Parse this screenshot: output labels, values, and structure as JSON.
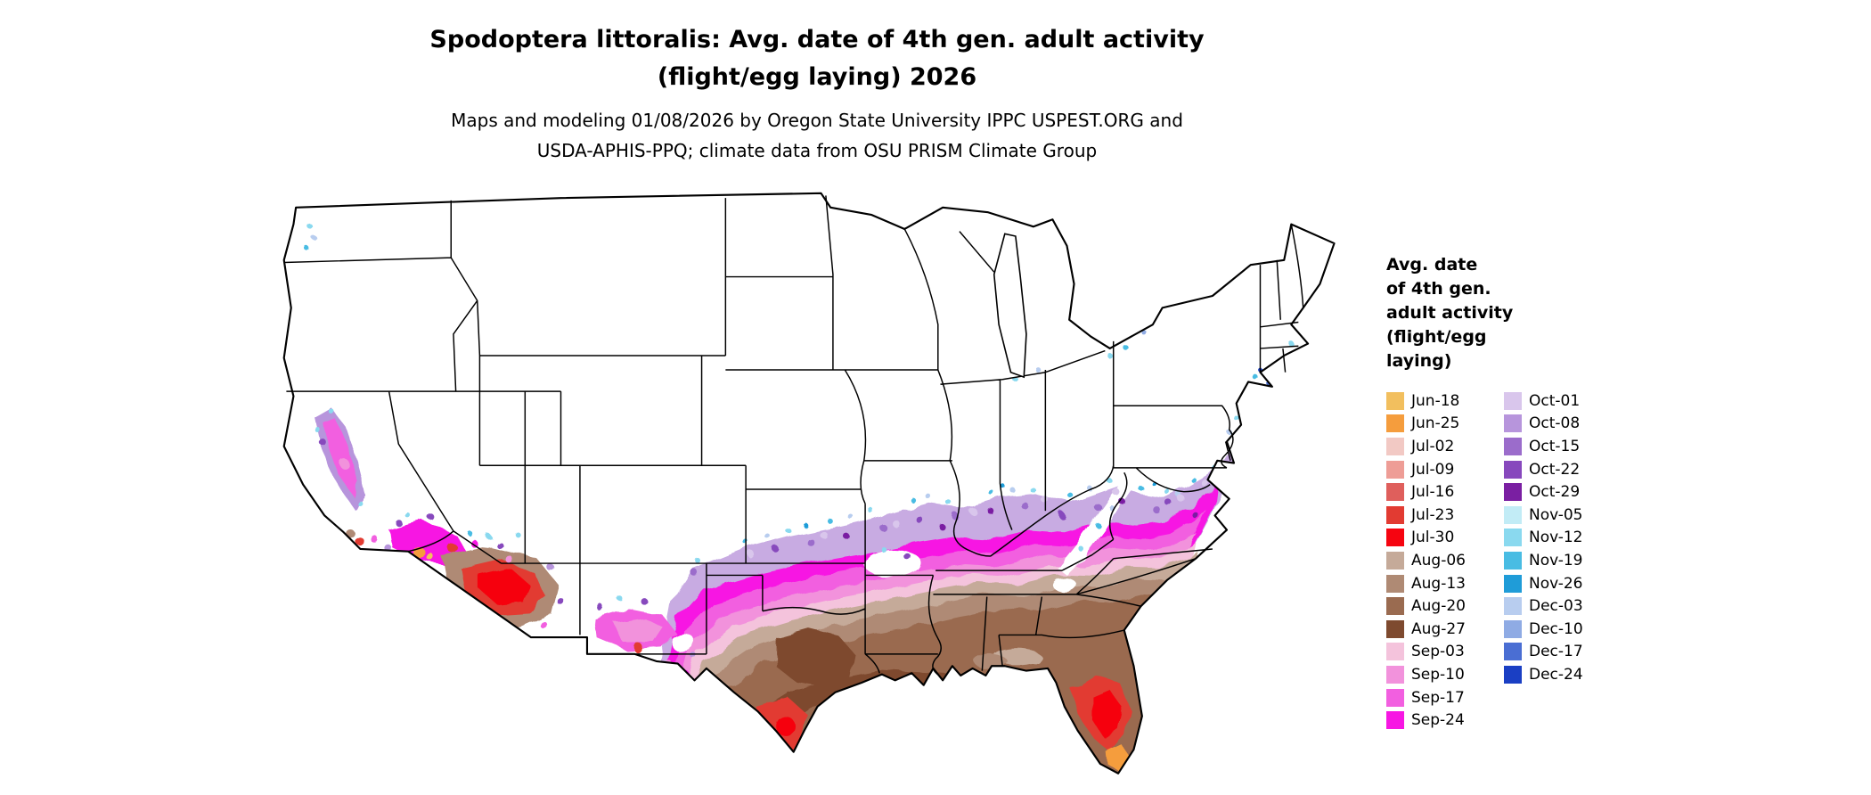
{
  "title": {
    "line1": "Spodoptera littoralis: Avg. date of 4th gen. adult activity",
    "line2": "(flight/egg laying) 2026"
  },
  "subtitle": {
    "line1": "Maps and modeling 01/08/2026 by Oregon State University IPPC USPEST.ORG and",
    "line2": "USDA-APHIS-PPQ; climate data from OSU PRISM Climate Group"
  },
  "legend": {
    "title_lines": [
      "Avg. date",
      "of 4th gen.",
      "adult activity",
      "(flight/egg",
      "laying)"
    ],
    "columns": [
      {
        "items": [
          {
            "label": "Jun-18",
            "color": "#F2BF5E"
          },
          {
            "label": "Jun-25",
            "color": "#F59D3D"
          },
          {
            "label": "Jul-02",
            "color": "#F2C9C4"
          },
          {
            "label": "Jul-09",
            "color": "#EE9D96"
          },
          {
            "label": "Jul-16",
            "color": "#DF5F5C"
          },
          {
            "label": "Jul-23",
            "color": "#E23B32"
          },
          {
            "label": "Jul-30",
            "color": "#F60410"
          },
          {
            "label": "Aug-06",
            "color": "#C5AA99"
          },
          {
            "label": "Aug-13",
            "color": "#AF8A74"
          },
          {
            "label": "Aug-20",
            "color": "#9A6B50"
          },
          {
            "label": "Aug-27",
            "color": "#7E4A2F"
          },
          {
            "label": "Sep-03",
            "color": "#F4C3DC"
          },
          {
            "label": "Sep-10",
            "color": "#F292DC"
          },
          {
            "label": "Sep-17",
            "color": "#F25FE0"
          },
          {
            "label": "Sep-24",
            "color": "#F716E3"
          }
        ]
      },
      {
        "items": [
          {
            "label": "Oct-01",
            "color": "#D9C6EC"
          },
          {
            "label": "Oct-08",
            "color": "#B795DC"
          },
          {
            "label": "Oct-15",
            "color": "#9B6CCB"
          },
          {
            "label": "Oct-22",
            "color": "#8748BD"
          },
          {
            "label": "Oct-29",
            "color": "#7A1FA2"
          },
          {
            "label": "Nov-05",
            "color": "#C2ECF6"
          },
          {
            "label": "Nov-12",
            "color": "#8AD9EF"
          },
          {
            "label": "Nov-19",
            "color": "#49BCE3"
          },
          {
            "label": "Nov-26",
            "color": "#1F9CD8"
          },
          {
            "label": "Dec-03",
            "color": "#B8CDEF"
          },
          {
            "label": "Dec-10",
            "color": "#8FABE4"
          },
          {
            "label": "Dec-17",
            "color": "#4A6ED3"
          },
          {
            "label": "Dec-24",
            "color": "#1A3FC4"
          }
        ]
      }
    ]
  }
}
